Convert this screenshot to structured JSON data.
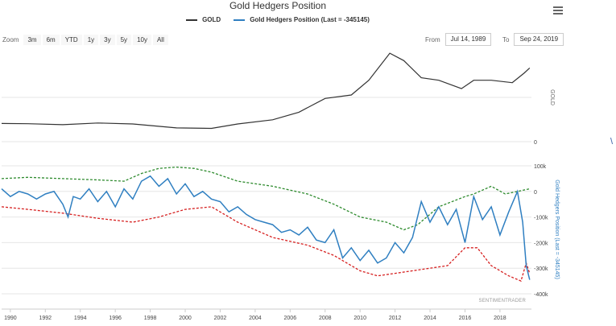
{
  "chart_data": {
    "type": "line",
    "title": "Gold Hedgers Position",
    "legend_position": "top-center",
    "panels": [
      {
        "name": "gold_panel",
        "y_axis_label": "GOLD",
        "y_ticks": [
          "0"
        ],
        "series": [
          {
            "name": "GOLD",
            "color": "#333333",
            "x": [
              1989.5,
              1991,
              1993,
              1995,
              1997,
              1999.5,
              2001.5,
              2003,
              2005,
              2006.5,
              2008,
              2009.5,
              2010.5,
              2011.7,
              2012.5,
              2013.5,
              2014.5,
              2015.8,
              2016.5,
              2017.5,
              2018.7,
              2019.4,
              2019.7
            ],
            "values": [
              370,
              365,
              345,
              380,
              360,
              280,
              270,
              360,
              445,
              600,
              880,
              950,
              1250,
              1800,
              1650,
              1300,
              1250,
              1080,
              1250,
              1250,
              1200,
              1400,
              1500
            ]
          }
        ]
      },
      {
        "name": "hedgers_panel",
        "y_axis_label": "Gold Hedgers Position (Last = -345145)",
        "y_ticks": [
          "100k",
          "0",
          "-100k",
          "-200k",
          "-300k",
          "-400k"
        ],
        "ylim": [
          -400000,
          100000
        ],
        "series": [
          {
            "name": "Gold Hedgers Position (Last = -345145)",
            "color": "#2f7fc1",
            "x": [
              1989.5,
              1990,
              1990.5,
              1991,
              1991.5,
              1992,
              1992.5,
              1993,
              1993.3,
              1993.6,
              1994,
              1994.5,
              1995,
              1995.5,
              1996,
              1996.5,
              1997,
              1997.5,
              1998,
              1998.5,
              1999,
              1999.5,
              2000,
              2000.5,
              2001,
              2001.5,
              2002,
              2002.5,
              2003,
              2003.5,
              2004,
              2004.5,
              2005,
              2005.5,
              2006,
              2006.5,
              2007,
              2007.5,
              2008,
              2008.5,
              2009,
              2009.5,
              2010,
              2010.5,
              2011,
              2011.5,
              2012,
              2012.5,
              2013,
              2013.5,
              2014,
              2014.5,
              2015,
              2015.5,
              2016,
              2016.5,
              2017,
              2017.5,
              2018,
              2018.5,
              2019,
              2019.3,
              2019.5,
              2019.7
            ],
            "values": [
              10000,
              -20000,
              0,
              -10000,
              -30000,
              -10000,
              0,
              -50000,
              -100000,
              -20000,
              -30000,
              10000,
              -40000,
              0,
              -60000,
              10000,
              -30000,
              40000,
              60000,
              20000,
              50000,
              -10000,
              30000,
              -20000,
              0,
              -30000,
              -40000,
              -80000,
              -60000,
              -90000,
              -110000,
              -120000,
              -130000,
              -160000,
              -150000,
              -170000,
              -140000,
              -190000,
              -200000,
              -150000,
              -260000,
              -220000,
              -270000,
              -230000,
              -280000,
              -260000,
              -200000,
              -240000,
              -180000,
              -40000,
              -120000,
              -60000,
              -130000,
              -70000,
              -200000,
              -20000,
              -110000,
              -60000,
              -170000,
              -80000,
              0,
              -120000,
              -290000,
              -345145
            ]
          },
          {
            "name": "upper band",
            "color": "#2e8b2e",
            "dashed": true,
            "x": [
              1989.5,
              1991,
              1993,
              1995,
              1996.5,
              1997.5,
              1998.5,
              1999.5,
              2000.5,
              2001.5,
              2003,
              2005,
              2007,
              2008.5,
              2010,
              2011.5,
              2012.5,
              2013.3,
              2014.5,
              2016,
              2016.5,
              2017.5,
              2018.3,
              2019,
              2019.7
            ],
            "values": [
              50000,
              55000,
              50000,
              45000,
              40000,
              70000,
              90000,
              95000,
              90000,
              75000,
              40000,
              20000,
              -10000,
              -50000,
              -100000,
              -120000,
              -150000,
              -130000,
              -60000,
              -20000,
              -10000,
              20000,
              -10000,
              0,
              10000
            ]
          },
          {
            "name": "lower band",
            "color": "#d62020",
            "dashed": true,
            "x": [
              1989.5,
              1991,
              1993,
              1995,
              1997,
              1998.5,
              2000,
              2001.5,
              2003,
              2005,
              2007,
              2008.5,
              2010,
              2011,
              2012,
              2013,
              2014,
              2015,
              2016,
              2016.7,
              2017.5,
              2018.5,
              2019.2,
              2019.5,
              2019.7
            ],
            "values": [
              -60000,
              -70000,
              -85000,
              -105000,
              -120000,
              -100000,
              -70000,
              -60000,
              -120000,
              -180000,
              -210000,
              -250000,
              -310000,
              -330000,
              -320000,
              -310000,
              -300000,
              -290000,
              -220000,
              -220000,
              -290000,
              -330000,
              -350000,
              -280000,
              -320000
            ]
          }
        ]
      }
    ],
    "x_ticks": [
      "1990",
      "1992",
      "1994",
      "1996",
      "1998",
      "2000",
      "2002",
      "2004",
      "2006",
      "2008",
      "2010",
      "2012",
      "2014",
      "2016",
      "2018"
    ],
    "xlim": [
      1989.5,
      2019.8
    ],
    "grid": "horizontal"
  },
  "legend": {
    "gold_label": "GOLD",
    "hedgers_label": "Gold Hedgers Position (Last = -345145)"
  },
  "zoom": {
    "label": "Zoom",
    "buttons": [
      "3m",
      "6m",
      "YTD",
      "1y",
      "3y",
      "5y",
      "10y",
      "All"
    ]
  },
  "range": {
    "from_label": "From",
    "from_value": "Jul 14, 1989",
    "to_label": "To",
    "to_value": "Sep 24, 2019"
  },
  "credit": "SENTIMENTRADER",
  "menu_icon": "hamburger-menu-icon"
}
